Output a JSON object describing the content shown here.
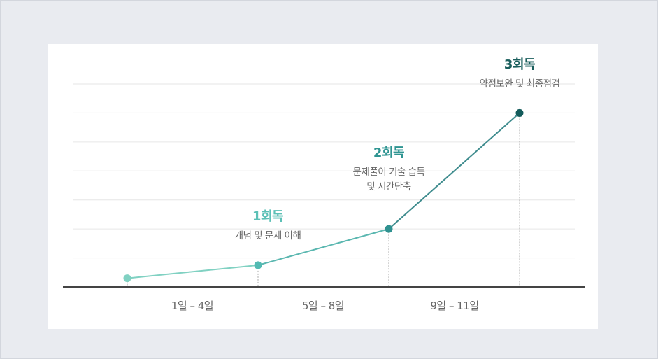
{
  "chart_data": {
    "type": "line",
    "x": [
      1,
      2,
      3,
      4
    ],
    "values": [
      0.3,
      0.75,
      2,
      6
    ],
    "ylim": [
      0,
      7
    ],
    "grid": true,
    "point_colors": [
      "#80d1c2",
      "#52bab2",
      "#2f9190",
      "#145b5b"
    ],
    "x_tick_labels": [
      "1일 – 4일",
      "5일 – 8일",
      "9일 – 11일"
    ],
    "annotations": [
      {
        "title": "1회독",
        "desc": [
          "개념 및 문제 이해"
        ],
        "color": "#5cc0b6"
      },
      {
        "title": "2회독",
        "desc": [
          "문제풀이 기술 습득",
          "및 시간단축"
        ],
        "color": "#2f9592"
      },
      {
        "title": "3회독",
        "desc": [
          "약점보완 및 최종점검"
        ],
        "color": "#1b5f5d"
      }
    ]
  }
}
